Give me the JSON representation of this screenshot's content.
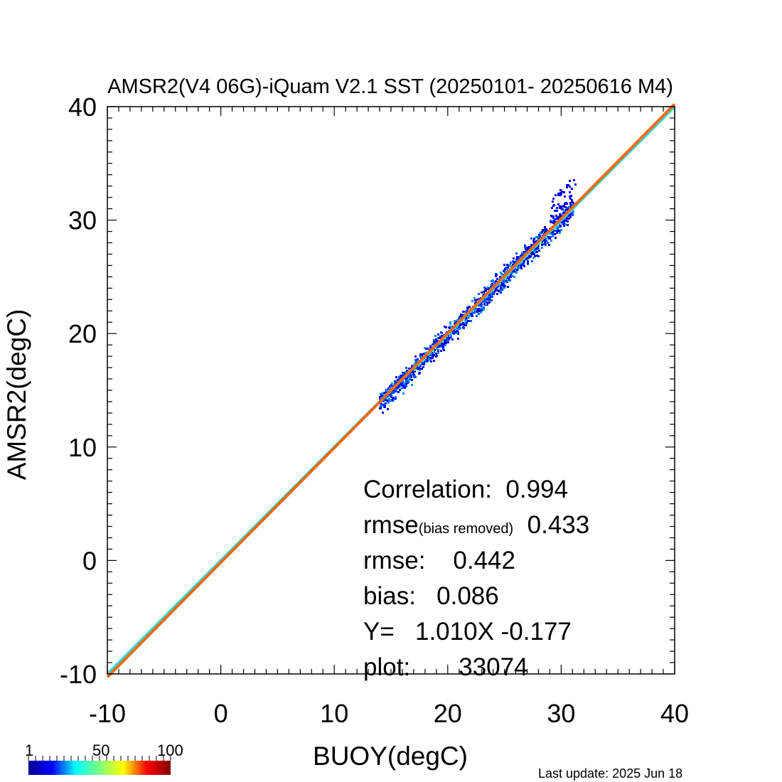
{
  "chart_data": {
    "type": "scatter",
    "title": "AMSR2(V4 06G)-iQuam V2.1 SST (20250101- 20250616 M4)",
    "xlabel": "BUOY(degC)",
    "ylabel": "AMSR2(degC)",
    "xlim": [
      -10,
      40
    ],
    "ylim": [
      -10,
      40
    ],
    "xticks": [
      "-10",
      "0",
      "10",
      "20",
      "30",
      "40"
    ],
    "yticks": [
      "-10",
      "0",
      "10",
      "20",
      "30",
      "40"
    ],
    "grid": false,
    "density_cloud": {
      "x_range": [
        13.9,
        31
      ],
      "center_line": {
        "slope": 1.01,
        "intercept": -0.177
      },
      "spread_degC": 0.43
    },
    "lines": [
      {
        "kind": "one-to-one",
        "slope": 1.0,
        "intercept": 0.0,
        "color": "#33dddd"
      },
      {
        "kind": "regression",
        "slope": 1.01,
        "intercept": -0.177,
        "color": "#f26a10"
      }
    ],
    "stats": {
      "correlation_label": "Correlation:",
      "correlation_value": "0.994",
      "rmse_br_label": "rmse",
      "rmse_br_sub": "(bias removed)",
      "rmse_br_value": "0.433",
      "rmse_label": "rmse:",
      "rmse_value": "0.442",
      "bias_label": "bias:",
      "bias_value": "0.086",
      "fit_label": "Y=",
      "fit_value": "1.010X -0.177",
      "plot_label": "plot:",
      "plot_value": "33074"
    },
    "colorbar": {
      "labels": [
        "1",
        "50",
        "100"
      ],
      "colors": [
        "#00008f",
        "#0000ff",
        "#00ffff",
        "#7fff7f",
        "#ffff00",
        "#ff0000",
        "#800000"
      ]
    }
  },
  "footer": {
    "last_update": "Last update: 2025 Jun 18"
  }
}
